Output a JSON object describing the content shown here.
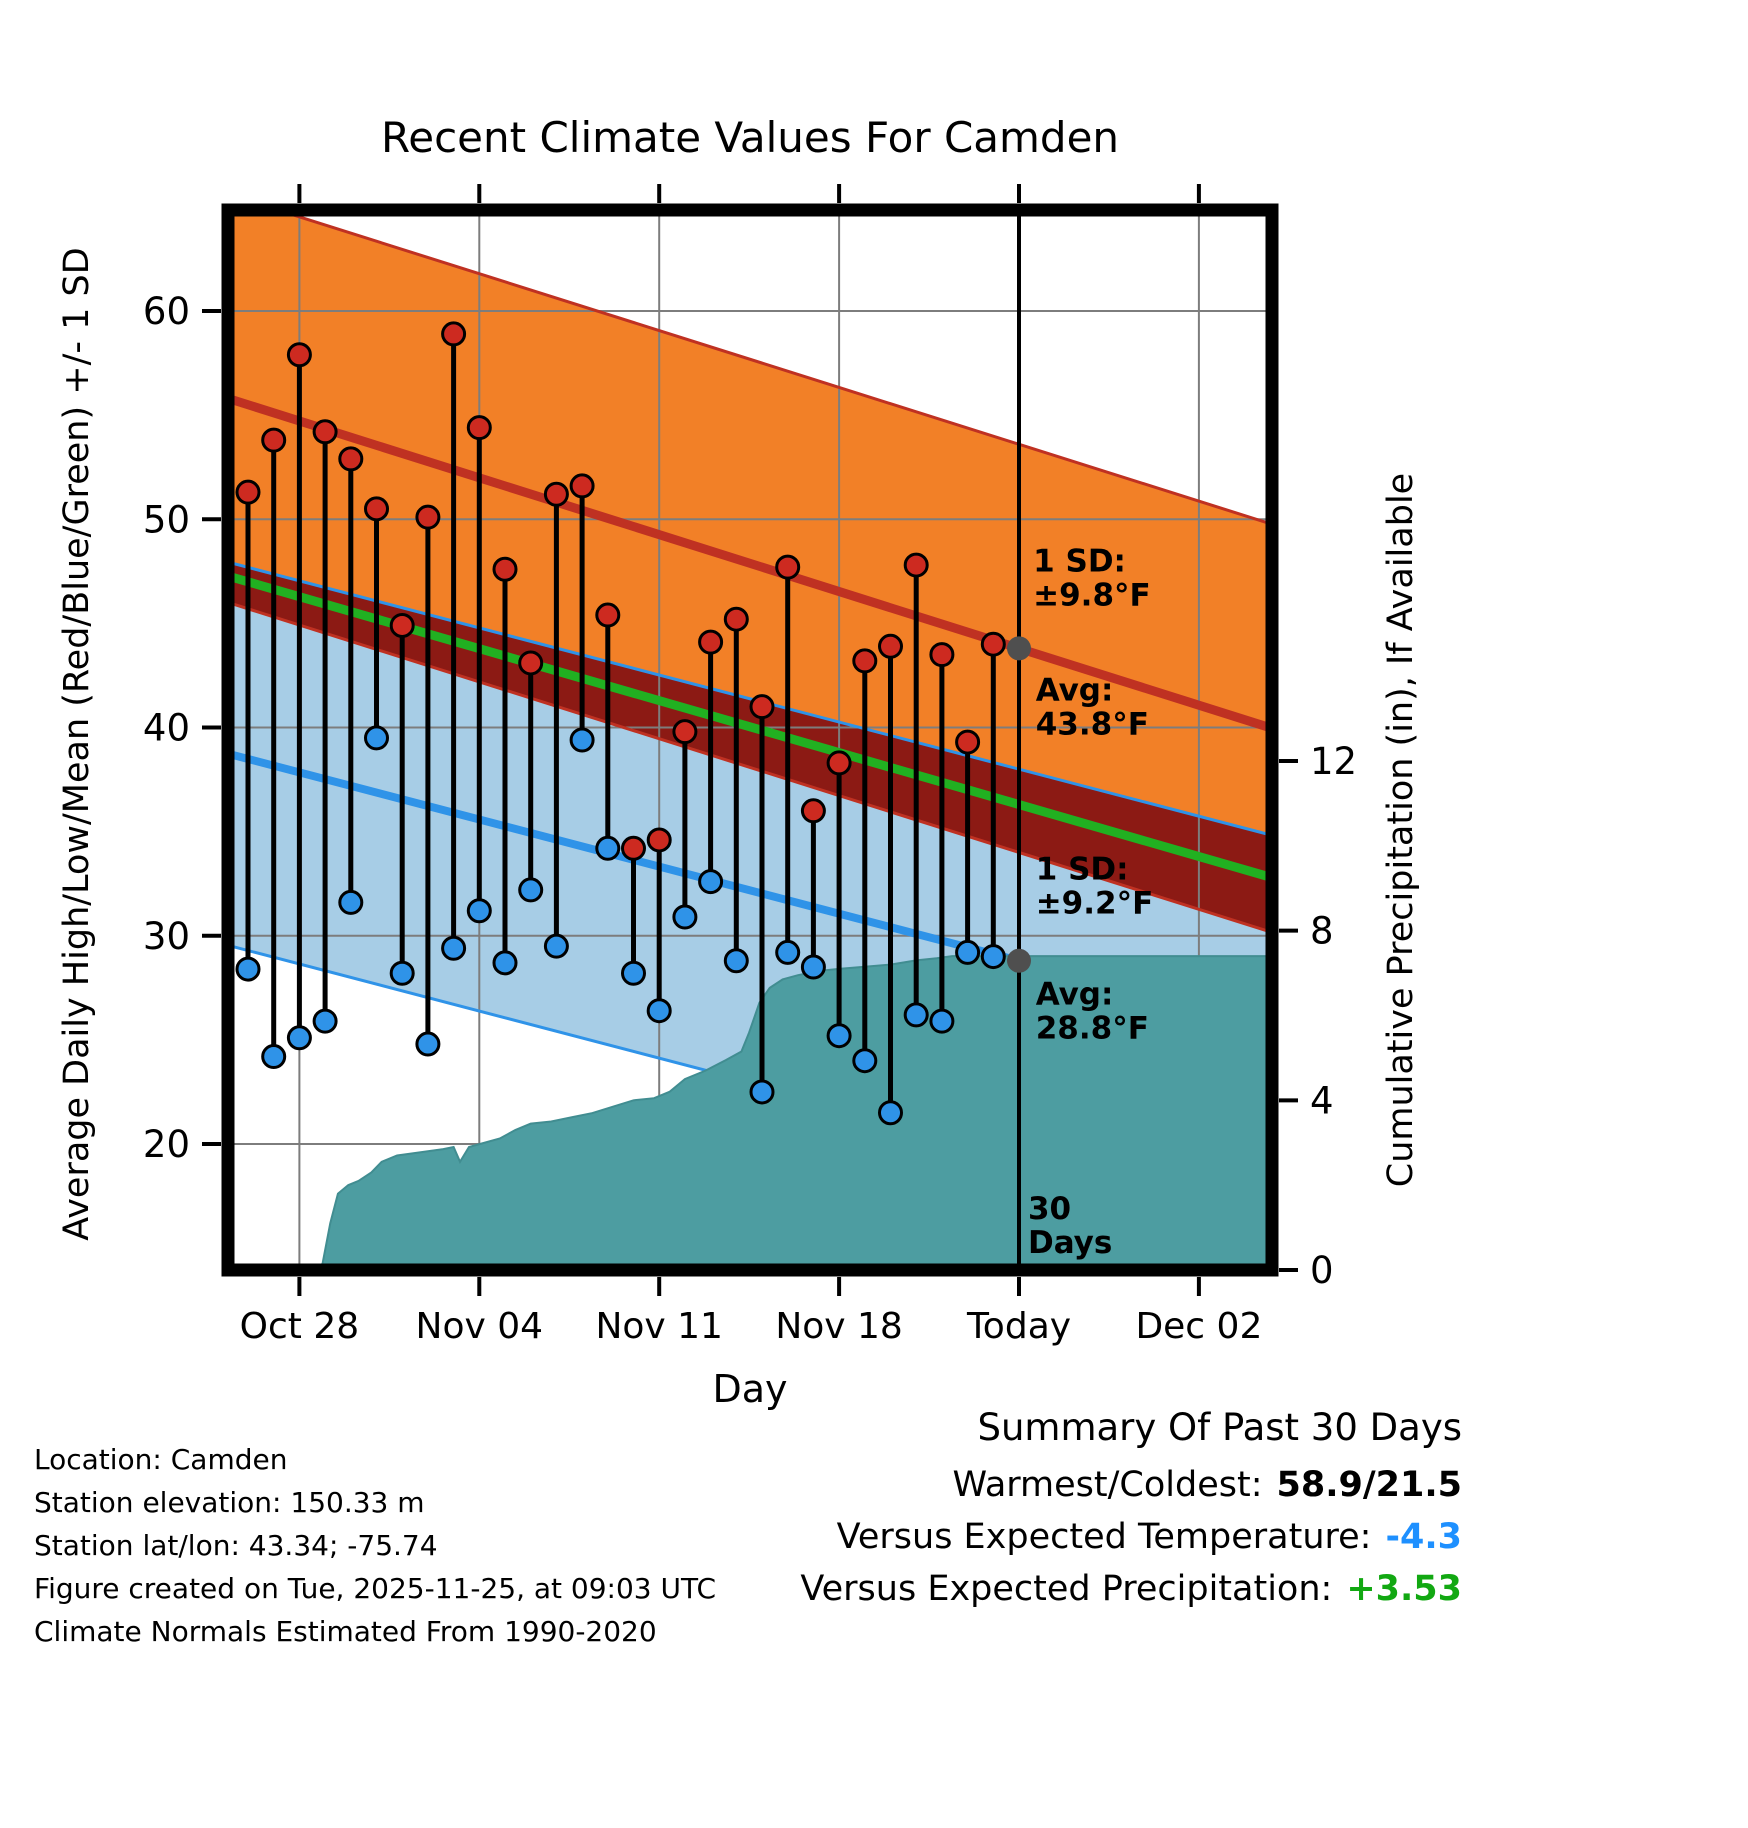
{
  "title": "Recent Climate Values For Camden",
  "chart_data": {
    "type": "line",
    "title": "Recent Climate Values For Camden",
    "xlabel": "Day",
    "ylabel_left": "Average Daily High/Low/Mean (Red/Blue/Green) +/- 1 SD",
    "ylabel_right": "Cumulative Precipitation (in), If Available",
    "grid": true,
    "x_ticks": [
      {
        "label": "Oct 28",
        "day": 2
      },
      {
        "label": "Nov 04",
        "day": 9
      },
      {
        "label": "Nov 11",
        "day": 16
      },
      {
        "label": "Nov 18",
        "day": 23
      },
      {
        "label": "Today",
        "day": 30
      },
      {
        "label": "Dec 02",
        "day": 37
      }
    ],
    "y_ticks_left": [
      20,
      30,
      40,
      50,
      60
    ],
    "y_ticks_right": [
      0,
      4,
      8,
      12
    ],
    "ylim_left": [
      13.9,
      64.9
    ],
    "ylim_right": [
      0,
      25
    ],
    "normals": {
      "today_day": 30,
      "avg_high_today": 43.8,
      "avg_low_today": 28.8,
      "high_sd": 9.8,
      "low_sd": 9.2,
      "high_slope_per_day": -0.39,
      "low_slope_per_day": -0.323
    },
    "daily": [
      {
        "date": "Oct 26",
        "day": 0,
        "high": 51.3,
        "low": 28.4
      },
      {
        "date": "Oct 27",
        "day": 1,
        "high": 53.8,
        "low": 24.2
      },
      {
        "date": "Oct 28",
        "day": 2,
        "high": 57.9,
        "low": 25.1
      },
      {
        "date": "Oct 29",
        "day": 3,
        "high": 54.2,
        "low": 25.9
      },
      {
        "date": "Oct 30",
        "day": 4,
        "high": 52.9,
        "low": 31.6
      },
      {
        "date": "Oct 31",
        "day": 5,
        "high": 50.5,
        "low": 39.5
      },
      {
        "date": "Nov 01",
        "day": 6,
        "high": 44.9,
        "low": 28.2
      },
      {
        "date": "Nov 02",
        "day": 7,
        "high": 50.1,
        "low": 24.8
      },
      {
        "date": "Nov 03",
        "day": 8,
        "high": 58.9,
        "low": 29.4
      },
      {
        "date": "Nov 04",
        "day": 9,
        "high": 54.4,
        "low": 31.2
      },
      {
        "date": "Nov 05",
        "day": 10,
        "high": 47.6,
        "low": 28.7
      },
      {
        "date": "Nov 06",
        "day": 11,
        "high": 43.1,
        "low": 32.2
      },
      {
        "date": "Nov 07",
        "day": 12,
        "high": 51.2,
        "low": 29.5
      },
      {
        "date": "Nov 08",
        "day": 13,
        "high": 51.6,
        "low": 39.4
      },
      {
        "date": "Nov 09",
        "day": 14,
        "high": 45.4,
        "low": 34.2
      },
      {
        "date": "Nov 10",
        "day": 15,
        "high": 34.2,
        "low": 28.2
      },
      {
        "date": "Nov 11",
        "day": 16,
        "high": 34.6,
        "low": 26.4
      },
      {
        "date": "Nov 12",
        "day": 17,
        "high": 39.8,
        "low": 30.9
      },
      {
        "date": "Nov 13",
        "day": 18,
        "high": 44.1,
        "low": 32.6
      },
      {
        "date": "Nov 14",
        "day": 19,
        "high": 45.2,
        "low": 28.8
      },
      {
        "date": "Nov 15",
        "day": 20,
        "high": 41.0,
        "low": 22.5
      },
      {
        "date": "Nov 16",
        "day": 21,
        "high": 47.7,
        "low": 29.2
      },
      {
        "date": "Nov 17",
        "day": 22,
        "high": 36.0,
        "low": 28.5
      },
      {
        "date": "Nov 18",
        "day": 23,
        "high": 38.3,
        "low": 25.2
      },
      {
        "date": "Nov 19",
        "day": 24,
        "high": 43.2,
        "low": 24.0
      },
      {
        "date": "Nov 20",
        "day": 25,
        "high": 43.9,
        "low": 21.5
      },
      {
        "date": "Nov 21",
        "day": 26,
        "high": 47.8,
        "low": 26.2
      },
      {
        "date": "Nov 22",
        "day": 27,
        "high": 43.5,
        "low": 25.9
      },
      {
        "date": "Nov 23",
        "day": 28,
        "high": 39.3,
        "low": 29.2
      },
      {
        "date": "Nov 24",
        "day": 29,
        "high": 44.0,
        "low": 29.0
      }
    ],
    "cumulative_precip": [
      [
        2.6,
        0
      ],
      [
        2.9,
        0.15
      ],
      [
        3.2,
        1.1
      ],
      [
        3.5,
        1.8
      ],
      [
        3.9,
        2.0
      ],
      [
        4.3,
        2.1
      ],
      [
        4.8,
        2.3
      ],
      [
        5.2,
        2.55
      ],
      [
        5.8,
        2.7
      ],
      [
        6.4,
        2.75
      ],
      [
        7.0,
        2.8
      ],
      [
        7.6,
        2.85
      ],
      [
        8.0,
        2.9
      ],
      [
        8.25,
        2.55
      ],
      [
        8.6,
        2.9
      ],
      [
        9.2,
        3.0
      ],
      [
        9.8,
        3.1
      ],
      [
        10.4,
        3.3
      ],
      [
        11.0,
        3.45
      ],
      [
        11.8,
        3.5
      ],
      [
        12.6,
        3.6
      ],
      [
        13.4,
        3.7
      ],
      [
        14.2,
        3.85
      ],
      [
        15.0,
        4.0
      ],
      [
        15.8,
        4.05
      ],
      [
        16.4,
        4.2
      ],
      [
        17.0,
        4.5
      ],
      [
        17.8,
        4.7
      ],
      [
        18.6,
        4.95
      ],
      [
        19.2,
        5.15
      ],
      [
        19.5,
        5.6
      ],
      [
        19.9,
        6.3
      ],
      [
        20.3,
        6.65
      ],
      [
        20.8,
        6.85
      ],
      [
        21.4,
        6.95
      ],
      [
        22.2,
        7.05
      ],
      [
        23.0,
        7.1
      ],
      [
        24.0,
        7.15
      ],
      [
        25.0,
        7.2
      ],
      [
        26.0,
        7.3
      ],
      [
        26.8,
        7.35
      ],
      [
        27.4,
        7.4
      ],
      [
        30.0,
        7.4
      ],
      [
        40.0,
        7.4
      ]
    ],
    "annotations": [
      {
        "lines": [
          "1 SD:",
          "±9.8°F"
        ],
        "day": 30.55,
        "temp": 47.5,
        "color": "#5a5a5a"
      },
      {
        "lines": [
          "Avg:",
          "43.8°F"
        ],
        "day": 30.65,
        "temp": 41.3,
        "color": "#5a5a5a"
      },
      {
        "lines": [
          "1 SD:",
          "±9.2°F"
        ],
        "day": 30.65,
        "temp": 32.7,
        "color": "#8c1a14"
      },
      {
        "lines": [
          "Avg:",
          "28.8°F"
        ],
        "day": 30.65,
        "temp": 26.7,
        "color": "#5a5a5a"
      },
      {
        "lines": [
          "30",
          "Days"
        ],
        "day": 30.35,
        "temp": 16.4,
        "color": "#000000"
      }
    ],
    "avg_markers": [
      {
        "name": "avg-high-today",
        "day": 30,
        "temp": 43.8
      },
      {
        "name": "avg-low-today",
        "day": 30,
        "temp": 28.8
      }
    ],
    "colors": {
      "band_high": "#f28027",
      "band_low": "#a7cde6",
      "band_overlap": "#8c1a14",
      "line_high": "#bf3122",
      "line_low": "#2f93e8",
      "line_mean": "#21b021",
      "precip_fill": "#4d9da1",
      "precip_edge": "#418d91",
      "marker_high": "#cd2a20",
      "marker_low": "#2f93e8",
      "avg_marker": "#4f4f4f",
      "grid": "#7d7d7d",
      "today_line": "#000000"
    }
  },
  "footer_left": {
    "lines": [
      "Location: Camden",
      "Station elevation: 150.33 m",
      "Station lat/lon: 43.34; -75.74",
      "Figure created on Tue, 2025-11-25, at 09:03 UTC",
      "Climate Normals Estimated From 1990-2020"
    ]
  },
  "summary": {
    "title": "Summary Of Past 30 Days",
    "rows": [
      {
        "label": "Warmest/Coldest:",
        "value": "58.9/21.5",
        "value_color": "#000000"
      },
      {
        "label": "Versus Expected Temperature:",
        "value": "-4.3",
        "value_color": "#1e90ff"
      },
      {
        "label": "Versus Expected Precipitation:",
        "value": "+3.53",
        "value_color": "#12a812"
      }
    ]
  }
}
